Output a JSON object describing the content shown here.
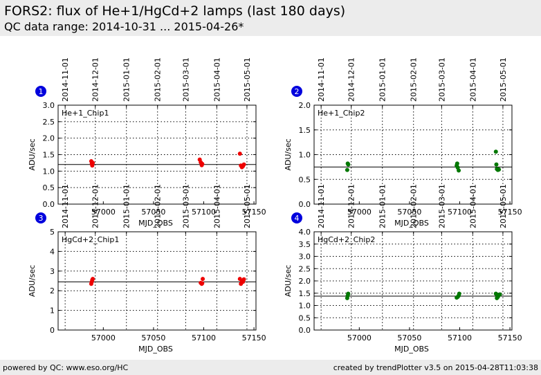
{
  "header": {
    "title": "FORS2: flux of He+1/HgCd+2 lamps (last 180 days)",
    "subtitle": "QC data range: 2014-10-31 ... 2015-04-26*"
  },
  "footer": {
    "left": "powered by QC: www.eso.org/HC",
    "right": "created by trendPlotter v3.5 on 2015-04-28T11:03:38"
  },
  "date_axis": {
    "labels": [
      "2014-11-01",
      "2014-12-01",
      "2015-01-01",
      "2015-02-01",
      "2015-03-01",
      "2015-04-01",
      "2015-05-01"
    ],
    "mjd": [
      56962,
      56992,
      57023,
      57054,
      57082,
      57113,
      57143
    ]
  },
  "colors": {
    "red": "#ee0000",
    "green": "#007700",
    "badge": "#0000dd"
  },
  "chart_data": [
    {
      "type": "scatter",
      "badge": "1",
      "panel_label": "He+1_Chip1",
      "xlabel": "MJD_OBS",
      "ylabel": "ADU/sec",
      "xlim": [
        56955,
        57152
      ],
      "ylim": [
        0,
        3.0
      ],
      "yticks": [
        0,
        0.5,
        1.0,
        1.5,
        2.0,
        2.5,
        3.0
      ],
      "ytick_labels": [
        "0.0",
        "0.5",
        "1.0",
        "1.5",
        "2.0",
        "2.5",
        "3.0"
      ],
      "xticks": [
        57000,
        57050,
        57100,
        57150
      ],
      "xtick_labels": [
        "57000",
        "57050",
        "57100",
        "57150"
      ],
      "grid": true,
      "reference": 1.2,
      "color": "red",
      "points": [
        [
          56988,
          1.3
        ],
        [
          56988.5,
          1.22
        ],
        [
          56989,
          1.17
        ],
        [
          56989.5,
          1.25
        ],
        [
          57096,
          1.35
        ],
        [
          57097,
          1.27
        ],
        [
          57098,
          1.18
        ],
        [
          57098.5,
          1.22
        ],
        [
          57136,
          1.53
        ],
        [
          57137,
          1.17
        ],
        [
          57138,
          1.12
        ],
        [
          57139,
          1.15
        ],
        [
          57140,
          1.2
        ]
      ]
    },
    {
      "type": "scatter",
      "badge": "2",
      "panel_label": "He+1_Chip2",
      "xlabel": "MJD_OBS",
      "ylabel": "ADU/sec",
      "xlim": [
        56955,
        57152
      ],
      "ylim": [
        0,
        2.0
      ],
      "yticks": [
        0,
        0.5,
        1.0,
        1.5,
        2.0
      ],
      "ytick_labels": [
        "0.0",
        "0.5",
        "1.0",
        "1.5",
        "2.0"
      ],
      "xticks": [
        57000,
        57050,
        57100,
        57150
      ],
      "xtick_labels": [
        "57000",
        "57050",
        "57100",
        "57150"
      ],
      "grid": true,
      "reference": 0.75,
      "color": "green",
      "points": [
        [
          56988,
          0.69
        ],
        [
          56988.5,
          0.82
        ],
        [
          56989,
          0.8
        ],
        [
          57097,
          0.78
        ],
        [
          57097.5,
          0.82
        ],
        [
          57098,
          0.74
        ],
        [
          57099,
          0.68
        ],
        [
          57136,
          1.06
        ],
        [
          57136.5,
          0.8
        ],
        [
          57137,
          0.71
        ],
        [
          57138,
          0.69
        ],
        [
          57139,
          0.7
        ]
      ]
    },
    {
      "type": "scatter",
      "badge": "3",
      "panel_label": "HgCd+2_Chip1",
      "xlabel": "MJD_OBS",
      "ylabel": "ADU/sec",
      "xlim": [
        56955,
        57152
      ],
      "ylim": [
        0,
        5
      ],
      "yticks": [
        0,
        1,
        2,
        3,
        4,
        5
      ],
      "ytick_labels": [
        "0",
        "1",
        "2",
        "3",
        "4",
        "5"
      ],
      "xticks": [
        57000,
        57050,
        57100,
        57150
      ],
      "xtick_labels": [
        "57000",
        "57050",
        "57100",
        "57150"
      ],
      "grid": true,
      "reference": 2.45,
      "color": "red",
      "points": [
        [
          56988,
          2.35
        ],
        [
          56988.5,
          2.45
        ],
        [
          56989,
          2.55
        ],
        [
          56989.5,
          2.6
        ],
        [
          57097,
          2.4
        ],
        [
          57098,
          2.35
        ],
        [
          57098.5,
          2.38
        ],
        [
          57099,
          2.6
        ],
        [
          57136,
          2.6
        ],
        [
          57137,
          2.35
        ],
        [
          57138,
          2.5
        ],
        [
          57139,
          2.45
        ],
        [
          57140,
          2.58
        ]
      ]
    },
    {
      "type": "scatter",
      "badge": "4",
      "panel_label": "HgCd+2_Chip2",
      "xlabel": "MJD_OBS",
      "ylabel": "ADU/sec",
      "xlim": [
        56955,
        57152
      ],
      "ylim": [
        0,
        4.0
      ],
      "yticks": [
        0,
        0.5,
        1.0,
        1.5,
        2.0,
        2.5,
        3.0,
        3.5,
        4.0
      ],
      "ytick_labels": [
        "0.0",
        "0.5",
        "1.0",
        "1.5",
        "2.0",
        "2.5",
        "3.0",
        "3.5",
        "4.0"
      ],
      "xticks": [
        57000,
        57050,
        57100,
        57150
      ],
      "xtick_labels": [
        "57000",
        "57050",
        "57100",
        "57150"
      ],
      "grid": true,
      "reference": 1.38,
      "color": "green",
      "points": [
        [
          56988,
          1.3
        ],
        [
          56988.5,
          1.4
        ],
        [
          56989,
          1.48
        ],
        [
          57097,
          1.32
        ],
        [
          57098,
          1.35
        ],
        [
          57099,
          1.4
        ],
        [
          57099.5,
          1.48
        ],
        [
          57136,
          1.48
        ],
        [
          57137,
          1.3
        ],
        [
          57138,
          1.35
        ],
        [
          57139,
          1.42
        ],
        [
          57140,
          1.45
        ]
      ]
    }
  ]
}
